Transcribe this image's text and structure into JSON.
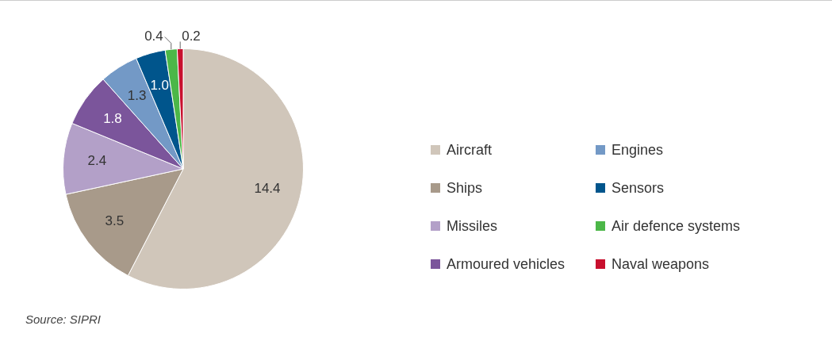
{
  "chart_data": {
    "type": "pie",
    "categories": [
      "Aircraft",
      "Ships",
      "Missiles",
      "Armoured vehicles",
      "Engines",
      "Sensors",
      "Air defence systems",
      "Naval weapons"
    ],
    "values": [
      14.4,
      3.5,
      2.4,
      1.8,
      1.3,
      1.0,
      0.4,
      0.2
    ],
    "colors": [
      "#d0c6ba",
      "#a89a8a",
      "#b3a0c8",
      "#7b559b",
      "#7399c6",
      "#00558c",
      "#4cb748",
      "#c8102e"
    ],
    "value_labels": [
      "14.4",
      "3.5",
      "2.4",
      "1.8",
      "1.3",
      "1.0",
      "0.4",
      "0.2"
    ],
    "legend": "right",
    "annotations": [
      "Source: SIPRI"
    ]
  }
}
